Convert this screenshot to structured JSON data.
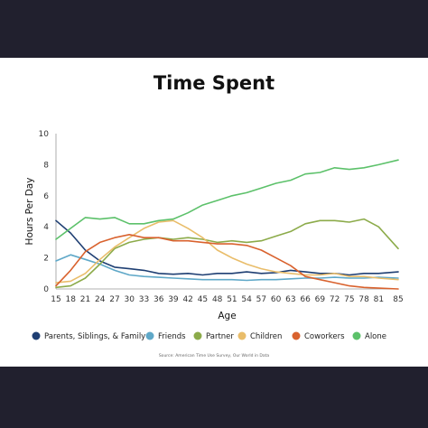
{
  "chart_data": {
    "type": "line",
    "title": "Time Spent",
    "xlabel": "Age",
    "ylabel": "Hours Per Day",
    "xlim": [
      15,
      85
    ],
    "ylim": [
      0,
      10
    ],
    "x_ticks": [
      15,
      18,
      21,
      24,
      27,
      30,
      33,
      36,
      39,
      42,
      45,
      48,
      51,
      54,
      57,
      60,
      63,
      66,
      69,
      72,
      75,
      78,
      81,
      85
    ],
    "y_ticks": [
      0,
      2,
      4,
      6,
      8,
      10
    ],
    "x": [
      15,
      18,
      21,
      24,
      27,
      30,
      33,
      36,
      39,
      42,
      45,
      48,
      51,
      54,
      57,
      60,
      63,
      66,
      69,
      72,
      75,
      78,
      81,
      85
    ],
    "series": [
      {
        "name": "Parents, Siblings, & Family",
        "color": "#1f3f73",
        "values": [
          4.4,
          3.6,
          2.5,
          1.8,
          1.4,
          1.3,
          1.2,
          1.0,
          0.95,
          1.0,
          0.9,
          1.0,
          1.0,
          1.1,
          1.0,
          1.05,
          1.2,
          1.1,
          1.0,
          1.0,
          0.9,
          1.0,
          1.0,
          1.1
        ]
      },
      {
        "name": "Friends",
        "color": "#5fa8c8",
        "values": [
          1.8,
          2.2,
          1.9,
          1.6,
          1.2,
          0.9,
          0.8,
          0.75,
          0.7,
          0.65,
          0.6,
          0.6,
          0.6,
          0.55,
          0.6,
          0.6,
          0.65,
          0.7,
          0.7,
          0.75,
          0.7,
          0.7,
          0.75,
          0.7
        ]
      },
      {
        "name": "Partner",
        "color": "#8cab4a",
        "values": [
          0.1,
          0.2,
          0.7,
          1.6,
          2.6,
          3.0,
          3.2,
          3.3,
          3.2,
          3.3,
          3.2,
          3.0,
          3.1,
          3.0,
          3.1,
          3.4,
          3.7,
          4.2,
          4.4,
          4.4,
          4.3,
          4.5,
          4.0,
          2.6
        ]
      },
      {
        "name": "Children",
        "color": "#e9bd6a",
        "values": [
          0.4,
          0.5,
          1.0,
          1.9,
          2.7,
          3.3,
          3.9,
          4.3,
          4.4,
          3.9,
          3.3,
          2.5,
          2.0,
          1.6,
          1.3,
          1.1,
          1.0,
          0.9,
          0.9,
          1.0,
          0.8,
          0.8,
          0.7,
          0.6
        ]
      },
      {
        "name": "Coworkers",
        "color": "#d9622e",
        "values": [
          0.2,
          1.2,
          2.4,
          3.0,
          3.3,
          3.5,
          3.3,
          3.3,
          3.1,
          3.1,
          3.0,
          2.9,
          2.9,
          2.8,
          2.5,
          2.0,
          1.5,
          0.8,
          0.6,
          0.4,
          0.2,
          0.1,
          0.05,
          0.0
        ]
      },
      {
        "name": "Alone",
        "color": "#5cc16a",
        "values": [
          3.2,
          3.9,
          4.6,
          4.5,
          4.6,
          4.2,
          4.2,
          4.4,
          4.5,
          4.9,
          5.4,
          5.7,
          6.0,
          6.2,
          6.5,
          6.8,
          7.0,
          7.4,
          7.5,
          7.8,
          7.7,
          7.8,
          8.0,
          8.3
        ]
      }
    ],
    "legend_position": "bottom",
    "grid": false,
    "source": "Source: American Time Use Survey, Our World in Data"
  }
}
